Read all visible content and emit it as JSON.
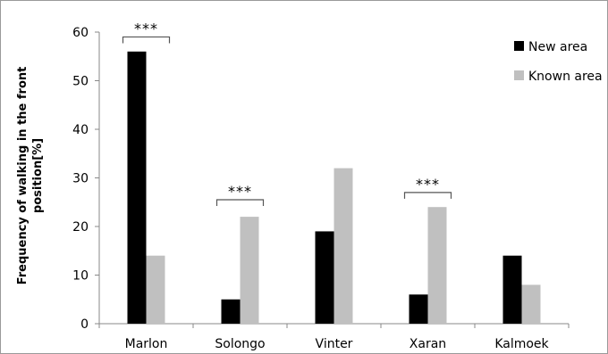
{
  "chart_data": {
    "type": "bar",
    "categories": [
      "Marlon",
      "Solongo",
      "Vinter",
      "Xaran",
      "Kalmoek"
    ],
    "series": [
      {
        "name": "New area",
        "values": [
          56,
          5,
          19,
          6,
          14
        ],
        "color": "#000000"
      },
      {
        "name": "Known area",
        "values": [
          14,
          22,
          32,
          24,
          8
        ],
        "color": "#c0c0c0"
      }
    ],
    "ylabel_lines": [
      "Frequency of walking in the front",
      "position[%]"
    ],
    "ylim": [
      0,
      60
    ],
    "yticks": [
      0,
      10,
      20,
      30,
      40,
      50,
      60
    ],
    "grid": false,
    "legend_position": "top-right",
    "significance": [
      {
        "category": "Marlon",
        "label": "***",
        "level": 59
      },
      {
        "category": "Solongo",
        "label": "***",
        "level": 25.5
      },
      {
        "category": "Xaran",
        "label": "***",
        "level": 27
      }
    ]
  }
}
